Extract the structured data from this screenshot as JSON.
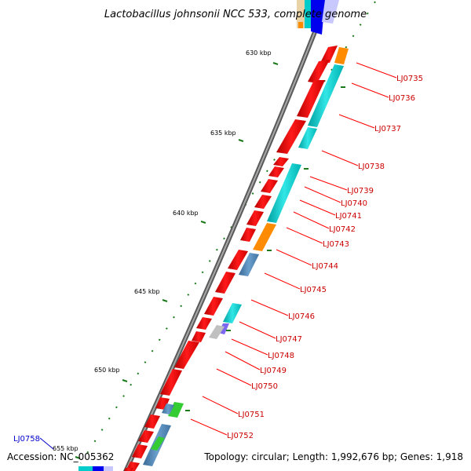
{
  "title": "Lactobacillus johnsonii NCC 533, complete genome",
  "accession": "Accession: NC_005362",
  "topology": "Topology: circular; Length: 1,992,676 bp; Genes: 1,918",
  "kbp_labels": [
    "630 kbp",
    "635 kbp",
    "640 kbp",
    "645 kbp",
    "650 kbp",
    "655 kbp"
  ],
  "genes": [
    {
      "label": "LJ0735"
    },
    {
      "label": "LJ0736"
    },
    {
      "label": "LJ0737"
    },
    {
      "label": "LJ0738"
    },
    {
      "label": "LJ0739"
    },
    {
      "label": "LJ0740"
    },
    {
      "label": "LJ0741"
    },
    {
      "label": "LJ0742"
    },
    {
      "label": "LJ0743"
    },
    {
      "label": "LJ0744"
    },
    {
      "label": "LJ0745"
    },
    {
      "label": "LJ0746"
    },
    {
      "label": "LJ0747"
    },
    {
      "label": "LJ0748"
    },
    {
      "label": "LJ0749"
    },
    {
      "label": "LJ0750"
    },
    {
      "label": "LJ0751"
    },
    {
      "label": "LJ0752"
    },
    {
      "label": "LJ0758",
      "color": "blue"
    }
  ],
  "colors": {
    "cds": "#ff0000",
    "cog_cyan": "#00cccc",
    "cog_orange": "#ff8c00",
    "cog_steel": "#4682b4",
    "cog_green": "#33cc33",
    "cog_gray": "#c0c0c0",
    "cog_purple": "#7b68ee",
    "backbone": "#808080",
    "tick": "#1a7a1a",
    "label_line": "#ff0000"
  }
}
